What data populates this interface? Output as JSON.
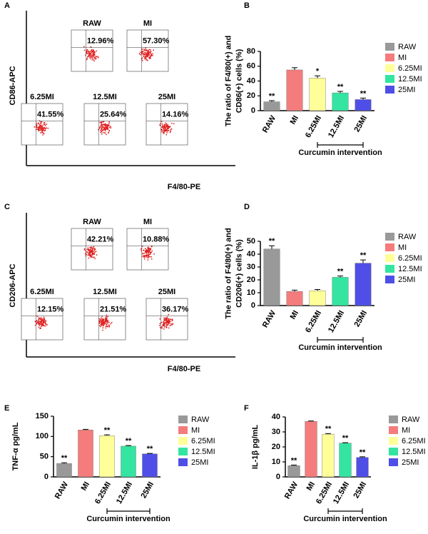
{
  "chart_data": [
    {
      "type": "flow",
      "panel": "A",
      "ylabel": "CD86-APC",
      "xlabel": "F4/80-PE",
      "plots": [
        {
          "title": "RAW",
          "percent": "12.96%"
        },
        {
          "title": "MI",
          "percent": "57.30%"
        },
        {
          "title": "6.25MI",
          "percent": "41.55%"
        },
        {
          "title": "12.5MI",
          "percent": "25.64%"
        },
        {
          "title": "25MI",
          "percent": "14.16%"
        }
      ]
    },
    {
      "type": "bar",
      "panel": "B",
      "ylabel": [
        "The ratio of F4/80(+) and",
        "CD86(+) cells (%)"
      ],
      "categories": [
        "RAW",
        "MI",
        "6.25MI",
        "12.5MI",
        "25MI"
      ],
      "values": [
        12,
        55,
        44,
        24,
        15
      ],
      "errors": [
        1.5,
        3,
        3,
        2,
        2
      ],
      "annotations": [
        "**",
        null,
        "*",
        "**",
        "**"
      ],
      "colors": [
        "#999999",
        "#f47c7c",
        "#ffff99",
        "#33e5a0",
        "#4f4fe8"
      ],
      "ylim": [
        0,
        80
      ],
      "yticks": [
        0,
        20,
        40,
        60,
        80
      ],
      "bracket_label": "Curcumin intervention"
    },
    {
      "type": "flow",
      "panel": "C",
      "ylabel": "CD206-APC",
      "xlabel": "F4/80-PE",
      "plots": [
        {
          "title": "RAW",
          "percent": "42.21%"
        },
        {
          "title": "MI",
          "percent": "10.88%"
        },
        {
          "title": "6.25MI",
          "percent": "12.15%"
        },
        {
          "title": "12.5MI",
          "percent": "21.51%"
        },
        {
          "title": "25MI",
          "percent": "36.17%"
        }
      ]
    },
    {
      "type": "bar",
      "panel": "D",
      "ylabel": [
        "The ratio of F4/80(+) and",
        "CD206(+) cells (%)"
      ],
      "categories": [
        "RAW",
        "MI",
        "6.25MI",
        "12.5MI",
        "25MI"
      ],
      "values": [
        44,
        11,
        11.5,
        22,
        33
      ],
      "errors": [
        2.5,
        1,
        1,
        1,
        2.5
      ],
      "annotations": [
        "**",
        null,
        null,
        "**",
        "**"
      ],
      "colors": [
        "#999999",
        "#f47c7c",
        "#ffff99",
        "#33e5a0",
        "#4f4fe8"
      ],
      "ylim": [
        0,
        50
      ],
      "yticks": [
        0,
        10,
        20,
        30,
        40,
        50
      ],
      "bracket_label": "Curcumin intervention"
    },
    {
      "type": "bar",
      "panel": "E",
      "ylabel": [
        "TNF-α pg/mL"
      ],
      "categories": [
        "RAW",
        "MI",
        "6.25MI",
        "12.5MI",
        "25MI"
      ],
      "values": [
        33,
        116,
        102,
        76,
        57
      ],
      "errors": [
        2,
        1.5,
        2,
        1.5,
        1
      ],
      "annotations": [
        "**",
        null,
        "**",
        "**",
        "**"
      ],
      "colors": [
        "#999999",
        "#f47c7c",
        "#ffff99",
        "#33e5a0",
        "#4f4fe8"
      ],
      "ylim": [
        0,
        150
      ],
      "yticks": [
        0,
        50,
        100,
        150
      ],
      "bracket_label": "Curcumin intervention"
    },
    {
      "type": "bar",
      "panel": "F",
      "ylabel": [
        "IL-1β pg/mL"
      ],
      "categories": [
        "RAW",
        "MI",
        "6.25MI",
        "12.5MI",
        "25MI"
      ],
      "values": [
        7.5,
        37,
        28.5,
        22.5,
        13
      ],
      "errors": [
        0.4,
        0.3,
        0.4,
        0.3,
        0.4
      ],
      "annotations": [
        "**",
        null,
        "**",
        "**",
        "**"
      ],
      "colors": [
        "#999999",
        "#f47c7c",
        "#ffff99",
        "#33e5a0",
        "#4f4fe8"
      ],
      "ylim": [
        0,
        40
      ],
      "yticks": [
        0,
        10,
        20,
        30,
        40
      ],
      "bracket_label": "Curcumin intervention"
    }
  ]
}
